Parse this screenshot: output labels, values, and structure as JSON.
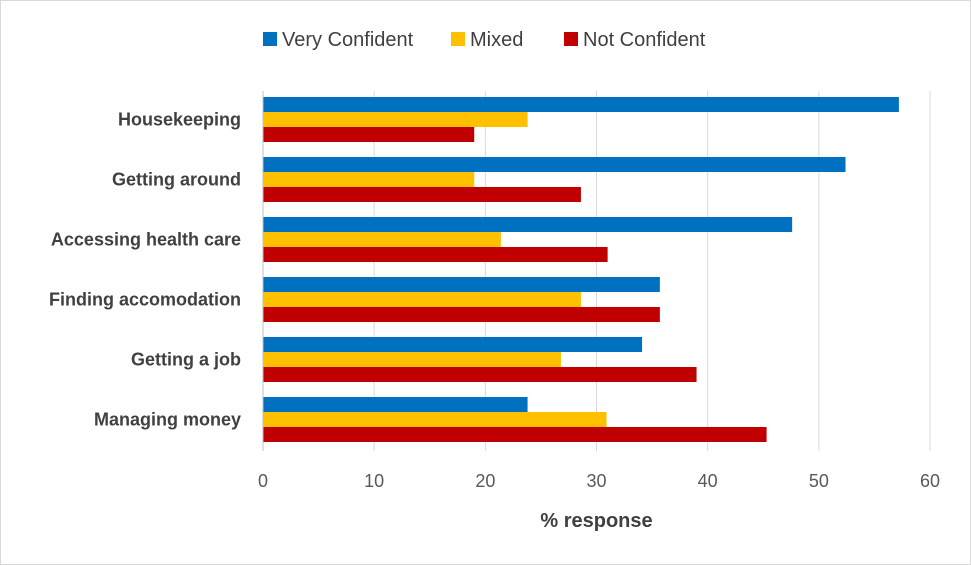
{
  "chart_data": {
    "type": "bar",
    "orientation": "horizontal",
    "categories": [
      "Housekeeping",
      "Getting around",
      "Accessing health care",
      "Finding accomodation",
      "Getting a job",
      "Managing money"
    ],
    "series": [
      {
        "name": "Very Confident",
        "color": "#0070C0",
        "values": [
          57.2,
          52.4,
          47.6,
          35.7,
          34.1,
          23.8
        ]
      },
      {
        "name": "Mixed",
        "color": "#FFC000",
        "values": [
          23.8,
          19.0,
          21.4,
          28.6,
          26.8,
          30.9
        ]
      },
      {
        "name": "Not Confident",
        "color": "#C00000",
        "values": [
          19.0,
          28.6,
          31.0,
          35.7,
          39.0,
          45.3
        ]
      }
    ],
    "xlabel": "% response",
    "ylabel": "",
    "xlim": [
      0,
      60
    ],
    "xticks": [
      "0",
      "10",
      "20",
      "30",
      "40",
      "50",
      "60"
    ],
    "grid": "vertical",
    "legend_position": "top"
  }
}
